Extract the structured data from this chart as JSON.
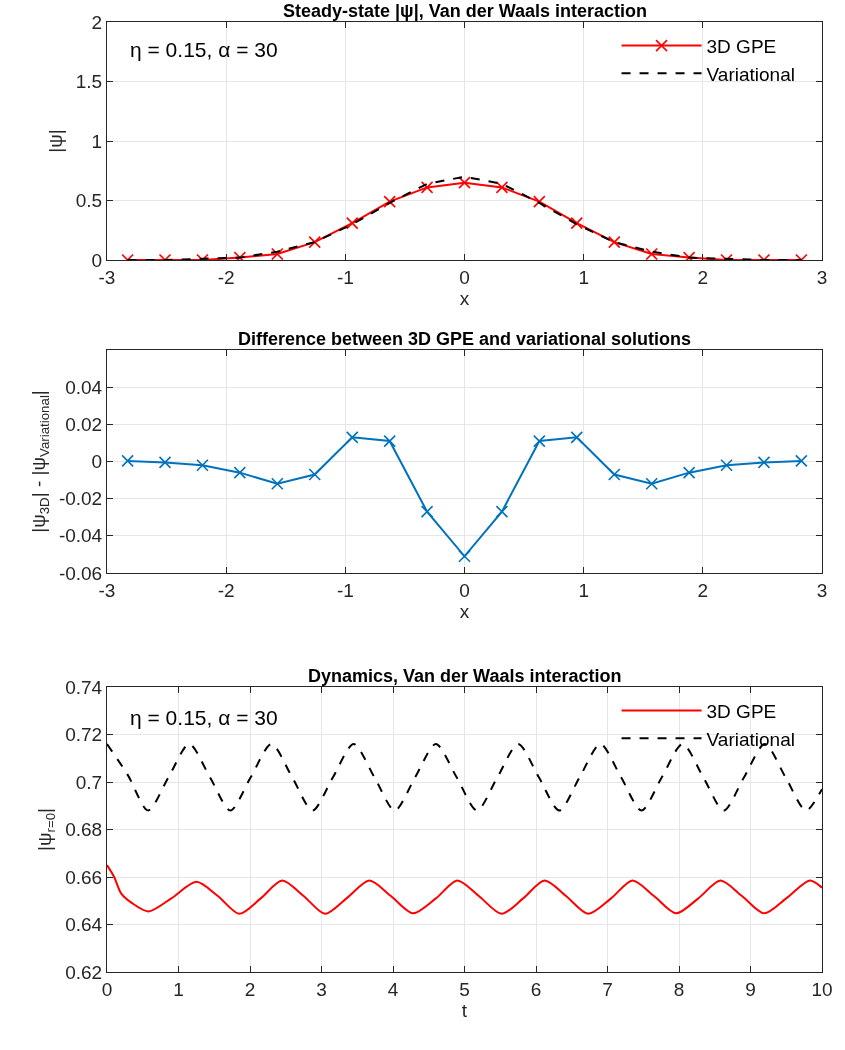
{
  "chart_data": [
    {
      "type": "line",
      "title": "Steady-state |ψ|, Van der Waals interaction",
      "xlabel": "x",
      "ylabel": "|ψ|",
      "annotations": [
        "η = 0.15, α = 30"
      ],
      "xlim": [
        -3,
        3
      ],
      "xticks": [
        -3,
        -2,
        -1,
        0,
        1,
        2,
        3
      ],
      "ylim": [
        0,
        2
      ],
      "yticks": [
        0,
        0.5,
        1,
        1.5,
        2
      ],
      "grid": true,
      "legend": "top right",
      "series": [
        {
          "name": "3D GPE",
          "color": "#ff0000",
          "line_style": "solid",
          "marker": "cross",
          "x": [
            -2.827,
            -2.513,
            -2.199,
            -1.885,
            -1.571,
            -1.257,
            -0.942,
            -0.628,
            -0.314,
            0,
            0.314,
            0.628,
            0.942,
            1.257,
            1.571,
            1.885,
            2.199,
            2.513,
            2.827
          ],
          "values": [
            0.0,
            0.0,
            0.0,
            0.02,
            0.05,
            0.15,
            0.31,
            0.49,
            0.61,
            0.65,
            0.61,
            0.49,
            0.31,
            0.15,
            0.05,
            0.02,
            0.0,
            0.0,
            0.0
          ]
        },
        {
          "name": "Variational",
          "color": "#000000",
          "line_style": "dashed",
          "marker": "none",
          "x": [
            -2.827,
            -2.513,
            -2.199,
            -1.885,
            -1.571,
            -1.257,
            -0.942,
            -0.628,
            -0.314,
            0,
            0.314,
            0.628,
            0.942,
            1.257,
            1.571,
            1.885,
            2.199,
            2.513,
            2.827
          ],
          "values": [
            0.0,
            0.0,
            0.01,
            0.02,
            0.07,
            0.15,
            0.3,
            0.48,
            0.64,
            0.7,
            0.64,
            0.48,
            0.3,
            0.15,
            0.07,
            0.02,
            0.01,
            0.0,
            0.0
          ]
        }
      ]
    },
    {
      "type": "line",
      "title": "Difference between 3D GPE and variational solutions",
      "xlabel": "x",
      "ylabel": "|ψ$_{3D}$| - |ψ$_{Variational}$|",
      "xlim": [
        -3,
        3
      ],
      "xticks": [
        -3,
        -2,
        -1,
        0,
        1,
        2,
        3
      ],
      "ylim": [
        -0.06,
        0.06
      ],
      "yticks": [
        -0.06,
        -0.04,
        -0.02,
        0,
        0.02,
        0.04
      ],
      "grid": true,
      "series": [
        {
          "color": "#0072bd",
          "line_style": "solid",
          "marker": "cross",
          "x": [
            -2.827,
            -2.513,
            -2.199,
            -1.885,
            -1.571,
            -1.257,
            -0.942,
            -0.628,
            -0.314,
            0,
            0.314,
            0.628,
            0.942,
            1.257,
            1.571,
            1.885,
            2.199,
            2.513,
            2.827
          ],
          "values": [
            0.0003,
            -0.0005,
            -0.002,
            -0.006,
            -0.012,
            -0.007,
            0.013,
            0.011,
            -0.027,
            -0.051,
            -0.027,
            0.011,
            0.013,
            -0.007,
            -0.012,
            -0.006,
            -0.002,
            -0.0005,
            0.0003
          ]
        }
      ]
    },
    {
      "type": "line",
      "title": "Dynamics, Van der Waals interaction",
      "xlabel": "t",
      "ylabel": "|ψ$_{r=0}$|",
      "annotations": [
        "η = 0.15, α = 30"
      ],
      "xlim": [
        0,
        10
      ],
      "xticks": [
        0,
        1,
        2,
        3,
        4,
        5,
        6,
        7,
        8,
        9,
        10
      ],
      "ylim": [
        0.62,
        0.74
      ],
      "yticks": [
        0.62,
        0.64,
        0.66,
        0.68,
        0.7,
        0.72,
        0.74
      ],
      "grid": true,
      "legend": "top right",
      "series": [
        {
          "name": "3D GPE",
          "color": "#ff0000",
          "line_style": "solid",
          "marker": "none",
          "x": [
            0,
            0.1,
            0.2,
            0.35,
            0.58,
            0.9,
            1.25,
            1.55,
            1.85,
            2.15,
            2.45,
            2.75,
            3.05,
            3.35,
            3.67,
            3.97,
            4.28,
            4.6,
            4.9,
            5.2,
            5.52,
            5.82,
            6.12,
            6.42,
            6.73,
            7.05,
            7.35,
            7.65,
            7.96,
            8.27,
            8.58,
            8.88,
            9.19,
            9.5,
            9.83,
            10
          ],
          "values": [
            0.665,
            0.66,
            0.653,
            0.649,
            0.6455,
            0.651,
            0.658,
            0.652,
            0.6445,
            0.651,
            0.6585,
            0.652,
            0.6445,
            0.651,
            0.6585,
            0.652,
            0.6447,
            0.651,
            0.6585,
            0.652,
            0.6445,
            0.651,
            0.6585,
            0.652,
            0.6445,
            0.651,
            0.6585,
            0.652,
            0.6447,
            0.651,
            0.6585,
            0.652,
            0.6447,
            0.651,
            0.6585,
            0.6555
          ]
        },
        {
          "name": "Variational",
          "color": "#000000",
          "line_style": "dashed",
          "marker": "none",
          "x": [
            0,
            0.29,
            0.575,
            0.86,
            1.15,
            1.44,
            1.725,
            2.01,
            2.3,
            2.59,
            2.875,
            3.16,
            3.45,
            3.74,
            4.025,
            4.31,
            4.6,
            4.89,
            5.175,
            5.46,
            5.75,
            6.04,
            6.325,
            6.61,
            6.9,
            7.19,
            7.475,
            7.76,
            8.05,
            8.34,
            8.625,
            8.91,
            9.2,
            9.49,
            9.775,
            10
          ],
          "values": [
            0.716,
            0.703,
            0.688,
            0.702,
            0.716,
            0.702,
            0.688,
            0.702,
            0.716,
            0.702,
            0.688,
            0.702,
            0.716,
            0.702,
            0.688,
            0.702,
            0.716,
            0.702,
            0.688,
            0.702,
            0.716,
            0.702,
            0.688,
            0.702,
            0.716,
            0.702,
            0.688,
            0.702,
            0.716,
            0.702,
            0.688,
            0.702,
            0.716,
            0.702,
            0.688,
            0.697
          ]
        }
      ]
    }
  ]
}
